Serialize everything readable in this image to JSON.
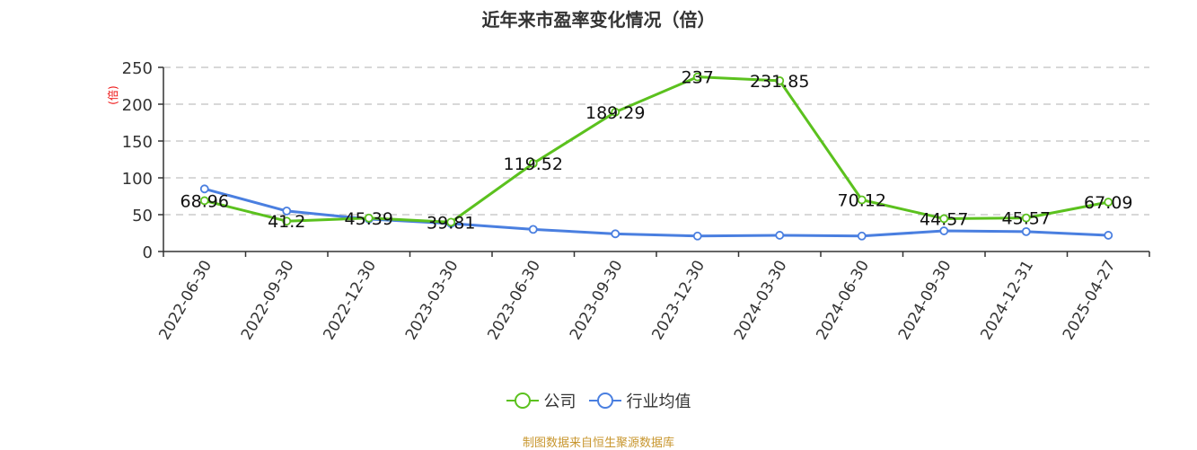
{
  "title": "近年来市盈率变化情况（倍）",
  "source_note": "制图数据来自恒生聚源数据库",
  "legend": [
    {
      "label": "公司",
      "color": "#5bc11e"
    },
    {
      "label": "行业均值",
      "color": "#4a7fe0"
    }
  ],
  "chart_data": {
    "type": "line",
    "title": "近年来市盈率变化情况（倍）",
    "xlabel": "",
    "ylabel": "(倍)",
    "ylim": [
      0,
      250
    ],
    "yticks": [
      0,
      50,
      100,
      150,
      200,
      250
    ],
    "grid": true,
    "legend_position": "bottom",
    "categories": [
      "2022-06-30",
      "2022-09-30",
      "2022-12-30",
      "2023-03-30",
      "2023-06-30",
      "2023-09-30",
      "2023-12-30",
      "2024-03-30",
      "2024-06-30",
      "2024-09-30",
      "2024-12-31",
      "2025-04-27"
    ],
    "series": [
      {
        "name": "公司",
        "color": "#5bc11e",
        "show_labels": true,
        "labels": [
          "68.96",
          "41.2",
          "45.39",
          "39.81",
          "119.52",
          "189.29",
          "237",
          "231.85",
          "70.12",
          "44.57",
          "45.57",
          "67.09"
        ],
        "values": [
          68.96,
          41.2,
          45.39,
          39.81,
          119.52,
          189.29,
          237,
          231.85,
          70.12,
          44.57,
          45.57,
          67.09
        ]
      },
      {
        "name": "行业均值",
        "color": "#4a7fe0",
        "show_labels": false,
        "values": [
          85,
          55,
          44,
          38,
          30,
          24,
          21,
          22,
          21,
          28,
          27,
          22
        ]
      }
    ]
  }
}
